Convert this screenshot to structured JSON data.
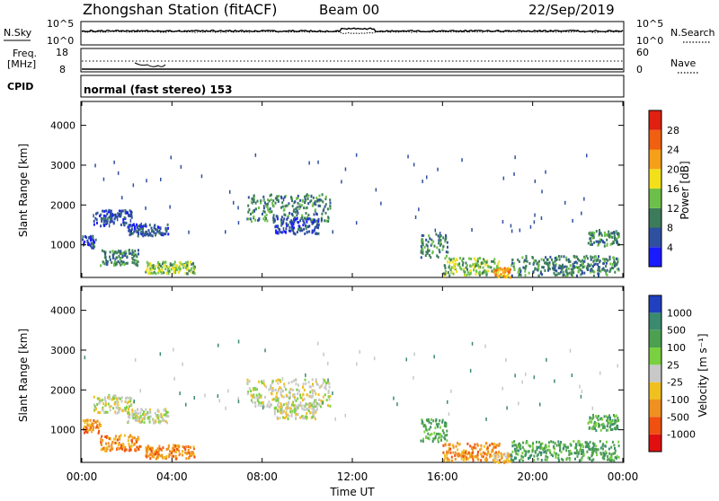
{
  "header": {
    "station": "Zhongshan Station (fitACF)",
    "beam": "Beam 00",
    "date": "22/Sep/2019"
  },
  "noise_panel": {
    "left_label": "N.Sky",
    "right_label": "N.Search",
    "y_ticks_left": [
      "10^5",
      "10^0"
    ],
    "y_ticks_right": [
      "10^5",
      "10^0"
    ]
  },
  "freq_panel": {
    "left_label_line1": "Freq.",
    "left_label_line2": "[MHz]",
    "left_ticks": [
      "18",
      "8"
    ],
    "right_label": "Nave",
    "right_ticks": [
      "60",
      "0"
    ]
  },
  "cpid": {
    "label": "CPID",
    "value": "normal (fast stereo) 153"
  },
  "chart_data": [
    {
      "type": "heatmap",
      "panel": "power",
      "ylabel": "Slant Range [km]",
      "colorbar_label": "Power [dB]",
      "ylim": [
        180,
        4600
      ],
      "yticks": [
        1000,
        2000,
        3000,
        4000
      ],
      "xlim_hours": [
        0,
        24
      ],
      "colorbar_ticks": [
        4,
        8,
        12,
        16,
        20,
        24,
        28
      ],
      "colorbar_colors": [
        "#1a1aff",
        "#2f4fa0",
        "#3c7c5a",
        "#6cc04a",
        "#f2e01a",
        "#f5a018",
        "#f06010",
        "#e02010"
      ],
      "echo_regions": [
        {
          "t0": 0.0,
          "t1": 0.6,
          "r0": 950,
          "r1": 1250,
          "level": 1
        },
        {
          "t0": 0.5,
          "t1": 2.2,
          "r0": 1500,
          "r1": 1900,
          "level": 1
        },
        {
          "t0": 2.0,
          "t1": 3.8,
          "r0": 1250,
          "r1": 1550,
          "level": 1
        },
        {
          "t0": 0.8,
          "t1": 2.5,
          "r0": 500,
          "r1": 900,
          "level": 2
        },
        {
          "t0": 2.8,
          "t1": 5.0,
          "r0": 300,
          "r1": 600,
          "level": 3
        },
        {
          "t0": 7.3,
          "t1": 11.0,
          "r0": 1600,
          "r1": 2300,
          "level": 2
        },
        {
          "t0": 8.5,
          "t1": 10.5,
          "r0": 1300,
          "r1": 1700,
          "level": 1
        },
        {
          "t0": 15.0,
          "t1": 16.2,
          "r0": 700,
          "r1": 1300,
          "level": 2
        },
        {
          "t0": 16.0,
          "t1": 18.5,
          "r0": 250,
          "r1": 700,
          "level": 3
        },
        {
          "t0": 18.2,
          "t1": 19.0,
          "r0": 200,
          "r1": 450,
          "level": 5
        },
        {
          "t0": 19.0,
          "t1": 23.8,
          "r0": 250,
          "r1": 750,
          "level": 2
        },
        {
          "t0": 22.4,
          "t1": 23.8,
          "r0": 1000,
          "r1": 1400,
          "level": 2
        }
      ]
    },
    {
      "type": "heatmap",
      "panel": "velocity",
      "ylabel": "Slant Range [km]",
      "xlabel": "Time UT",
      "colorbar_label": "Velocity [m s⁻¹]",
      "ylim": [
        180,
        4600
      ],
      "yticks": [
        1000,
        2000,
        3000,
        4000
      ],
      "xlim_hours": [
        0,
        24
      ],
      "xtick_labels": [
        "00:00",
        "04:00",
        "08:00",
        "12:00",
        "16:00",
        "20:00",
        "00:00"
      ],
      "colorbar_ticks": [
        "1000",
        "500",
        "100",
        "25",
        "-25",
        "-100",
        "-500",
        "-1000"
      ],
      "colorbar_colors": [
        "#2040c0",
        "#3a8a70",
        "#4ca050",
        "#7ad040",
        "#c8c8c8",
        "#f0c020",
        "#f09020",
        "#f05010",
        "#e01010"
      ],
      "echo_regions": [
        {
          "t0": 0.0,
          "t1": 0.8,
          "r0": 950,
          "r1": 1300,
          "level": 6
        },
        {
          "t0": 0.5,
          "t1": 2.3,
          "r0": 1450,
          "r1": 1900,
          "level": 4
        },
        {
          "t0": 2.0,
          "t1": 3.8,
          "r0": 1200,
          "r1": 1550,
          "level": 4
        },
        {
          "t0": 0.8,
          "t1": 2.6,
          "r0": 500,
          "r1": 900,
          "level": 6
        },
        {
          "t0": 2.8,
          "t1": 5.0,
          "r0": 300,
          "r1": 650,
          "level": 6
        },
        {
          "t0": 7.3,
          "t1": 11.0,
          "r0": 1600,
          "r1": 2300,
          "level": 4
        },
        {
          "t0": 8.5,
          "t1": 10.5,
          "r0": 1300,
          "r1": 1700,
          "level": 4
        },
        {
          "t0": 15.0,
          "t1": 16.2,
          "r0": 700,
          "r1": 1300,
          "level": 2
        },
        {
          "t0": 16.0,
          "t1": 18.5,
          "r0": 250,
          "r1": 700,
          "level": 6
        },
        {
          "t0": 18.2,
          "t1": 19.0,
          "r0": 200,
          "r1": 450,
          "level": 5
        },
        {
          "t0": 19.0,
          "t1": 23.8,
          "r0": 250,
          "r1": 750,
          "level": 2
        },
        {
          "t0": 22.4,
          "t1": 23.8,
          "r0": 1000,
          "r1": 1400,
          "level": 2
        }
      ]
    }
  ]
}
